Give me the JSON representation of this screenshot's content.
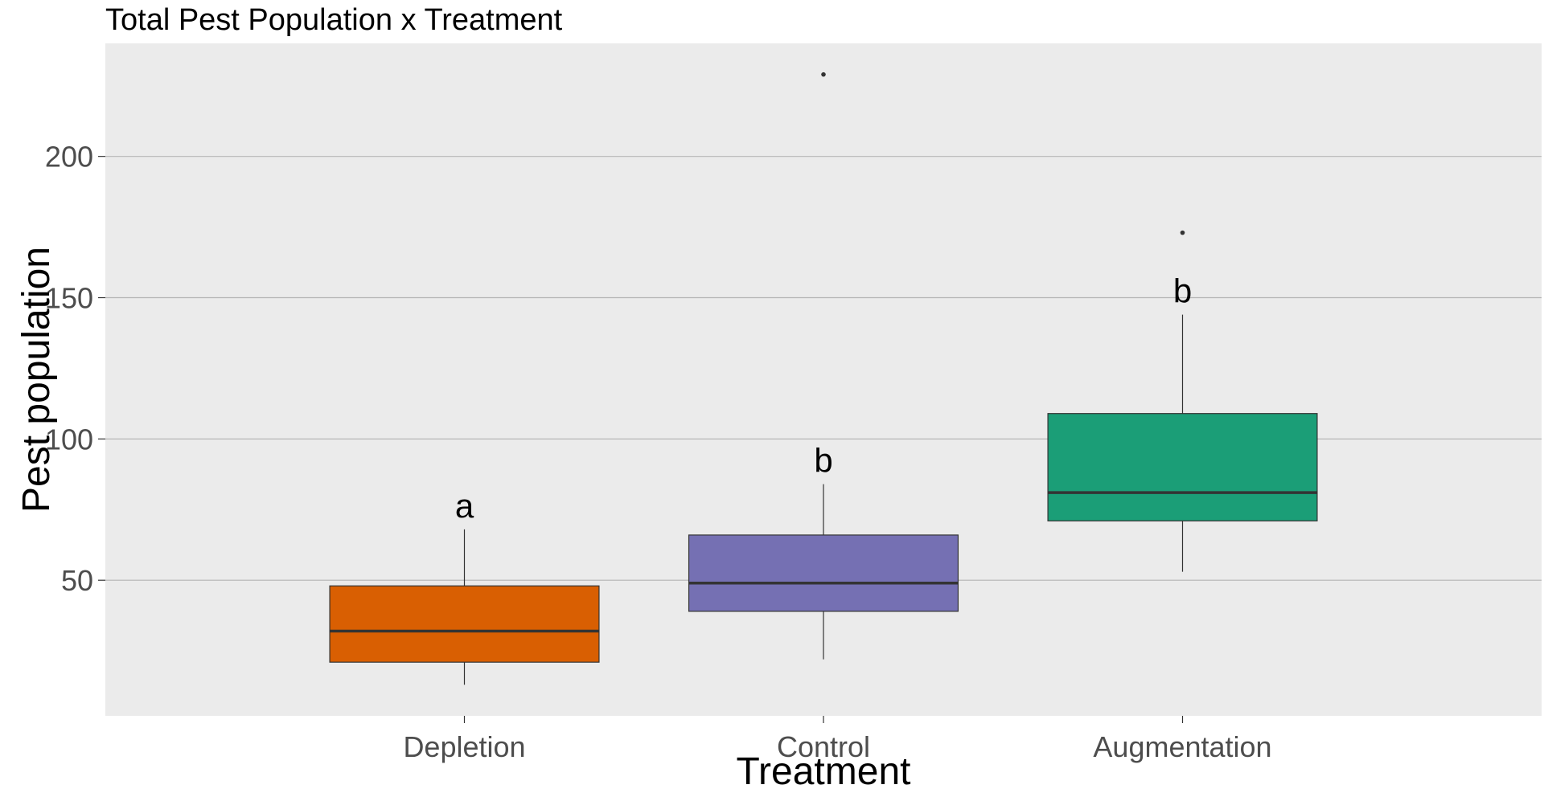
{
  "chart_data": {
    "type": "box",
    "title": "Total Pest Population x Treatment",
    "xlabel": "Treatment",
    "ylabel": "Pest population",
    "ylim": [
      2,
      240
    ],
    "yticks": [
      50,
      100,
      150,
      200
    ],
    "grid": true,
    "legend": "none",
    "categories": [
      "Depletion",
      "Control",
      "Augmentation"
    ],
    "boxes": [
      {
        "category": "Depletion",
        "color": "#d95f02",
        "whisker_low": 13,
        "q1": 21,
        "median": 32,
        "q3": 48,
        "whisker_high": 68,
        "outliers": [],
        "significance": "a"
      },
      {
        "category": "Control",
        "color": "#7570b3",
        "whisker_low": 22,
        "q1": 39,
        "median": 49,
        "q3": 66,
        "whisker_high": 84,
        "outliers": [
          229
        ],
        "significance": "b"
      },
      {
        "category": "Augmentation",
        "color": "#1b9e77",
        "whisker_low": 53,
        "q1": 71,
        "median": 81,
        "q3": 109,
        "whisker_high": 144,
        "outliers": [
          173
        ],
        "significance": "b"
      }
    ]
  }
}
